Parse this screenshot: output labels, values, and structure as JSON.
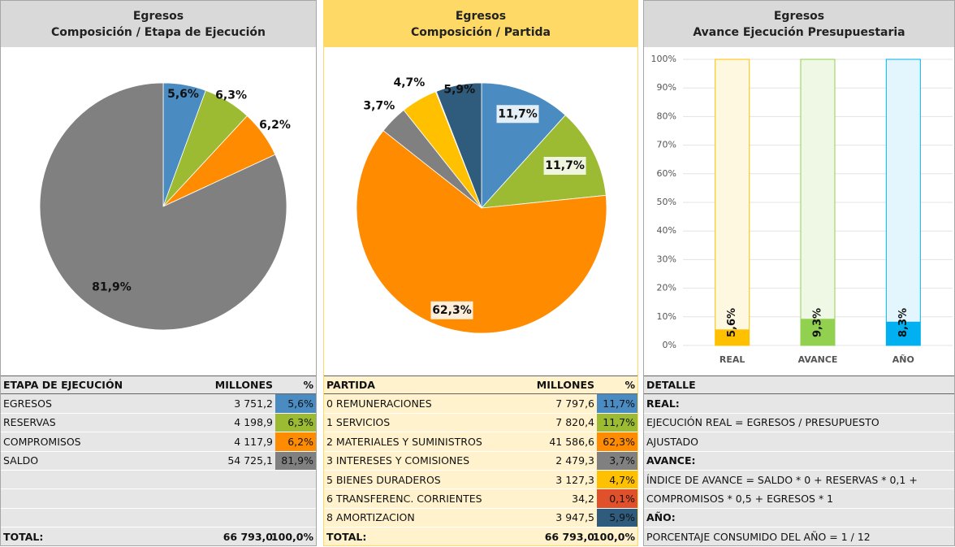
{
  "chart_data": [
    {
      "type": "pie",
      "title": "Egresos",
      "subtitle": "Composición / Etapa de Ejecución",
      "values": [
        5.6,
        6.3,
        6.2,
        81.9
      ],
      "value_labels": [
        "5,6%",
        "6,3%",
        "6,2%",
        "81,9%"
      ],
      "colors": [
        "#4a8cc2",
        "#9cbb33",
        "#ff8c00",
        "#808080"
      ]
    },
    {
      "type": "pie",
      "title": "Egresos",
      "subtitle": "Composición / Partida",
      "values": [
        11.7,
        11.7,
        62.3,
        3.7,
        4.7,
        0.1,
        5.9
      ],
      "value_labels": [
        "11,7%",
        "11,7%",
        "62,3%",
        "3,7%",
        "4,7%",
        null,
        "5,9%"
      ],
      "colors": [
        "#4a8cc2",
        "#9cbb33",
        "#ff8c00",
        "#808080",
        "#ffc000",
        "#e0502a",
        "#2f5b7c"
      ]
    },
    {
      "type": "bar",
      "title": "Egresos",
      "subtitle": "Avance Ejecución Presupuestaria",
      "categories": [
        "REAL",
        "AVANCE",
        "AÑO"
      ],
      "values": [
        5.6,
        9.3,
        8.3
      ],
      "value_labels": [
        "5,6%",
        "9,3%",
        "8,3%"
      ],
      "colors": [
        "#ffc000",
        "#92d050",
        "#00b0f0"
      ],
      "ylim": [
        0,
        100
      ],
      "yticks": [
        {
          "value": 0,
          "label": "0%"
        },
        {
          "value": 10,
          "label": "10%"
        },
        {
          "value": 20,
          "label": "20%"
        },
        {
          "value": 30,
          "label": "30%"
        },
        {
          "value": 40,
          "label": "40%"
        },
        {
          "value": 50,
          "label": "50%"
        },
        {
          "value": 60,
          "label": "60%"
        },
        {
          "value": 70,
          "label": "70%"
        },
        {
          "value": 80,
          "label": "80%"
        },
        {
          "value": 90,
          "label": "90%"
        },
        {
          "value": 100,
          "label": "100%"
        }
      ],
      "grid": true
    }
  ],
  "tables": [
    {
      "header": [
        "ETAPA DE EJECUCIÓN",
        "MILLONES",
        "%"
      ],
      "rows": [
        [
          "EGRESOS",
          "3 751,2",
          "5,6%"
        ],
        [
          "RESERVAS",
          "4 198,9",
          "6,3%"
        ],
        [
          "COMPROMISOS",
          "4 117,9",
          "6,2%"
        ],
        [
          "SALDO",
          "54 725,1",
          "81,9%"
        ]
      ],
      "total": [
        "TOTAL:",
        "66 793,0",
        "100,0%"
      ]
    },
    {
      "header": [
        "PARTIDA",
        "MILLONES",
        "%"
      ],
      "rows": [
        [
          "0 REMUNERACIONES",
          "7 797,6",
          "11,7%"
        ],
        [
          "1 SERVICIOS",
          "7 820,4",
          "11,7%"
        ],
        [
          "2 MATERIALES Y SUMINISTROS",
          "41 586,6",
          "62,3%"
        ],
        [
          "3 INTERESES Y COMISIONES",
          "2 479,3",
          "3,7%"
        ],
        [
          "5 BIENES DURADEROS",
          "3 127,3",
          "4,7%"
        ],
        [
          "6 TRANSFERENC. CORRIENTES",
          "34,2",
          "0,1%"
        ],
        [
          "8 AMORTIZACION",
          "3 947,5",
          "5,9%"
        ]
      ],
      "total": [
        "TOTAL:",
        "66 793,0",
        "100,0%"
      ]
    },
    {
      "header": "DETALLE",
      "lines": [
        {
          "text": "REAL:",
          "bold": true
        },
        {
          "text": "EJECUCIÓN REAL = EGRESOS / PRESUPUESTO",
          "bold": false
        },
        {
          "text": "AJUSTADO",
          "bold": false
        },
        {
          "text": "AVANCE:",
          "bold": true
        },
        {
          "text": "ÍNDICE DE AVANCE = SALDO * 0 + RESERVAS * 0,1 +",
          "bold": false
        },
        {
          "text": "COMPROMISOS * 0,5 + EGRESOS * 1",
          "bold": false
        },
        {
          "text": "AÑO:",
          "bold": true
        },
        {
          "text": "PORCENTAJE CONSUMIDO DEL AÑO = 1 / 12",
          "bold": false
        }
      ]
    }
  ]
}
